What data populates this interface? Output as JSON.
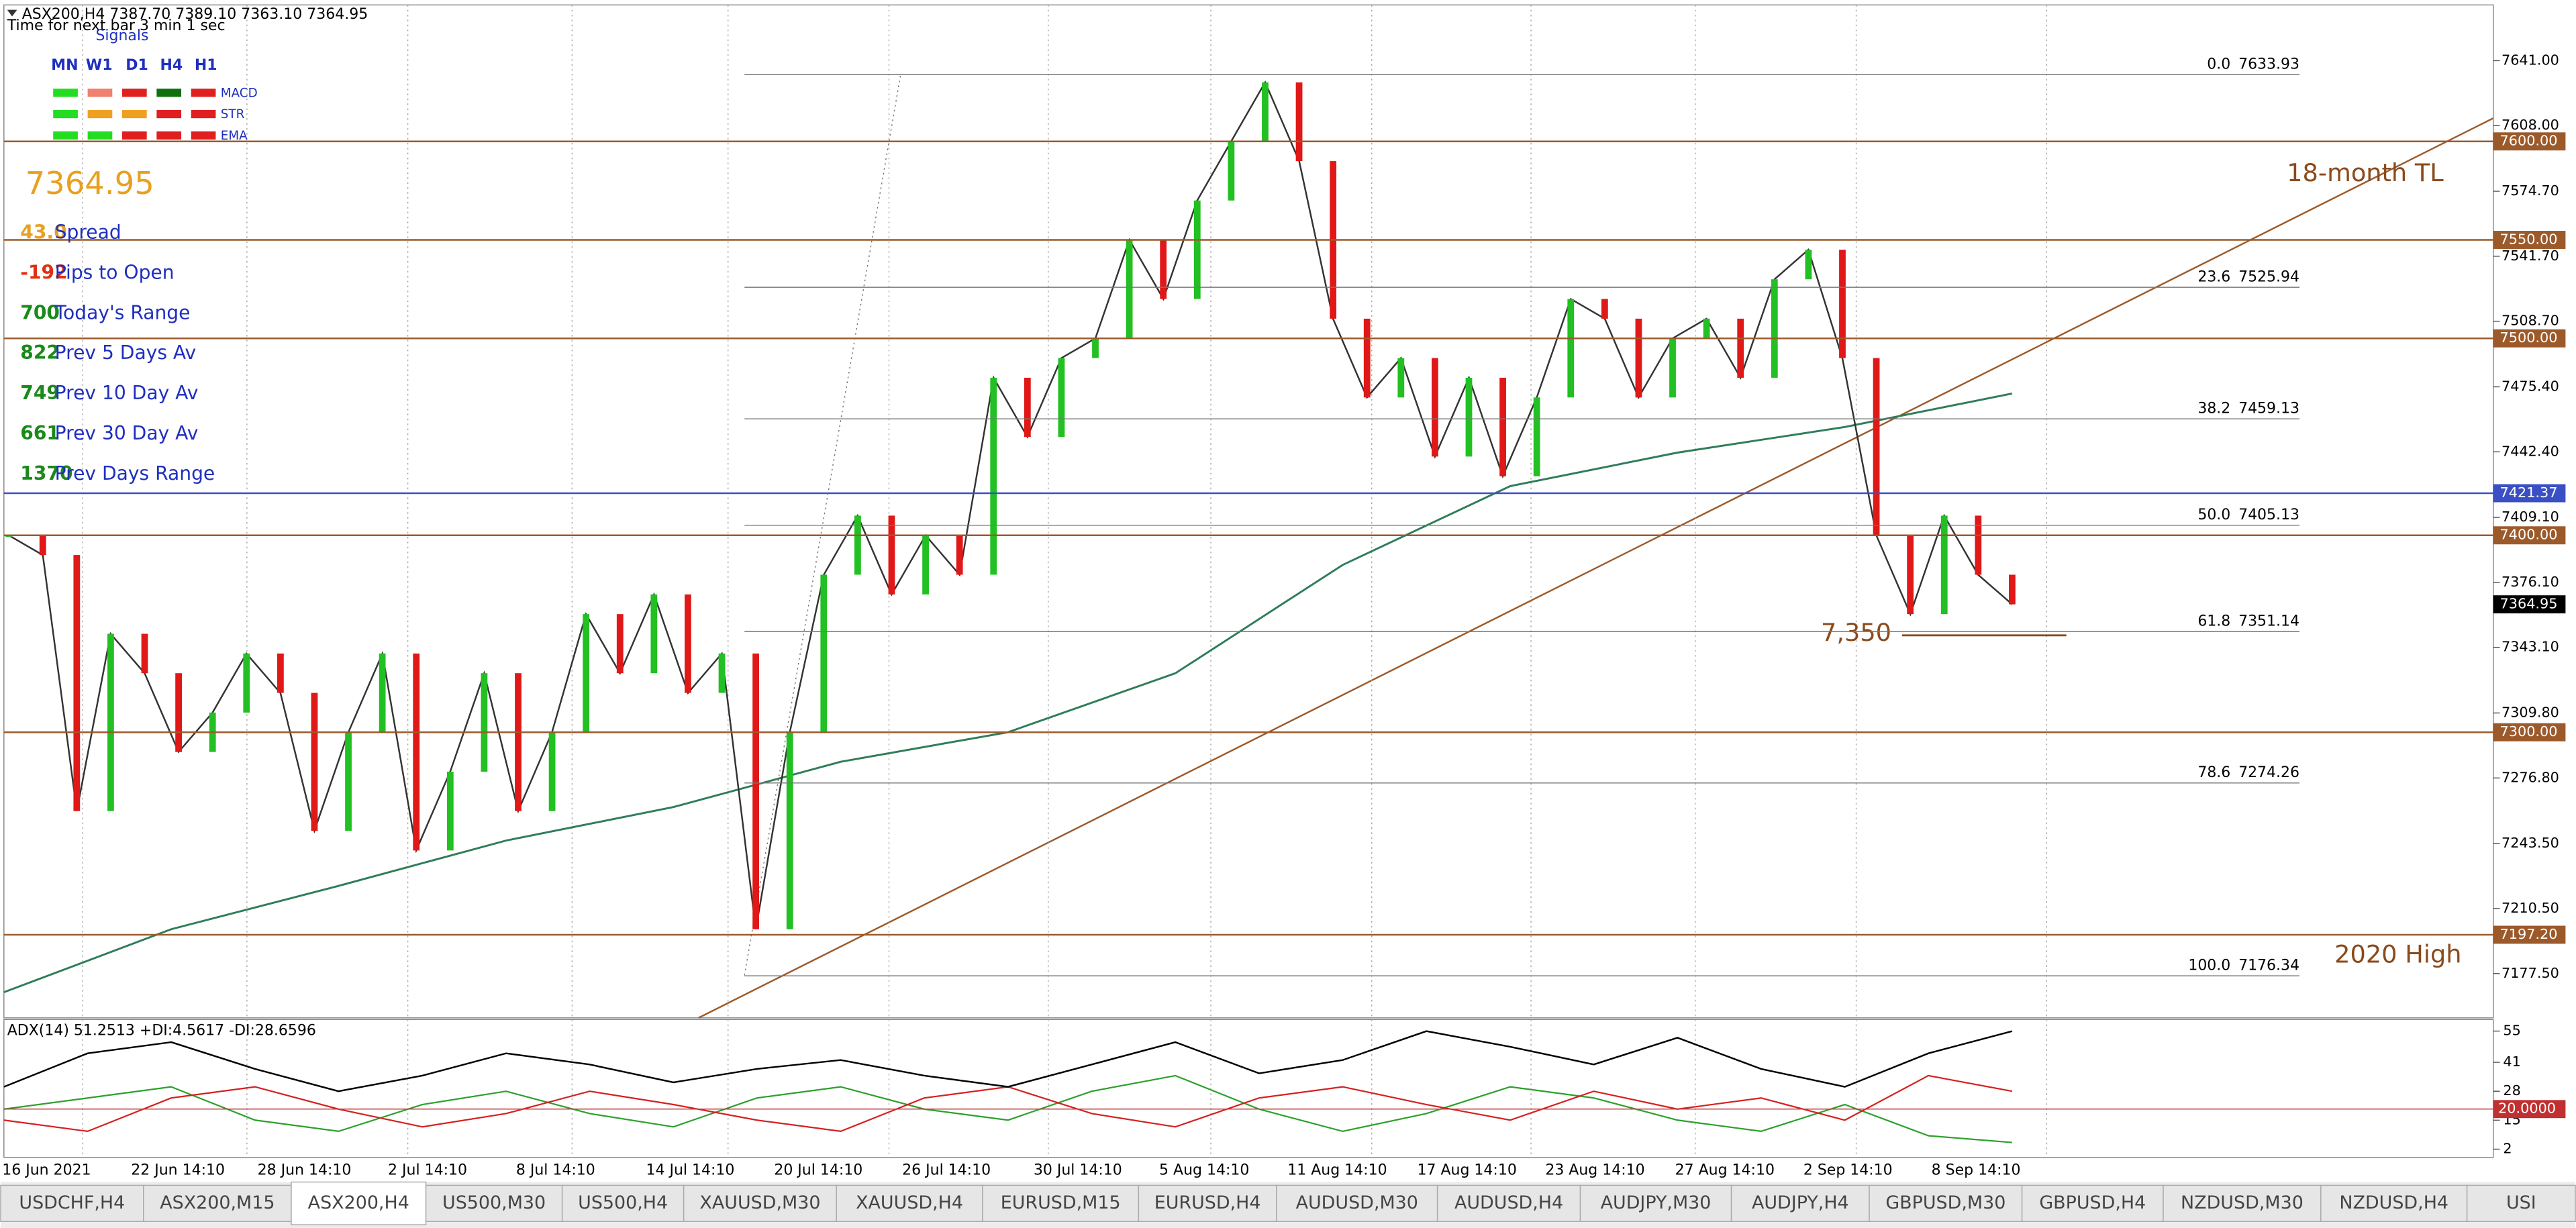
{
  "window": {
    "symbol_info": "ASX200,H4  7387.70 7389.10 7363.10 7364.95",
    "timer": "Time for next bar 3 min 1 sec"
  },
  "signals": {
    "title": "Signals",
    "timeframes": [
      "MN",
      "W1",
      "D1",
      "H4",
      "H1"
    ],
    "indicators": [
      "MACD",
      "STR",
      "EMA"
    ]
  },
  "info_panel": {
    "price": "7364.95",
    "rows": [
      {
        "value": "43.0",
        "label": "Spread"
      },
      {
        "value": "-192",
        "label": "Pips to Open"
      },
      {
        "value": "700",
        "label": "Today's Range"
      },
      {
        "value": "822",
        "label": "Prev 5 Days Av"
      },
      {
        "value": "749",
        "label": "Prev 10 Day Av"
      },
      {
        "value": "661",
        "label": "Prev 30 Day Av"
      },
      {
        "value": "1370",
        "label": "Prev Days Range"
      }
    ]
  },
  "price_chart": {
    "ylim": [
      7155,
      7669.3
    ],
    "yticks": [
      {
        "value": 7641,
        "label": "7641.00"
      },
      {
        "value": 7608,
        "label": "7608.00"
      },
      {
        "value": 7574.7,
        "label": "7574.70"
      },
      {
        "value": 7541.7,
        "label": "7541.70"
      },
      {
        "value": 7508.7,
        "label": "7508.70"
      },
      {
        "value": 7475.4,
        "label": "7475.40"
      },
      {
        "value": 7442.4,
        "label": "7442.40"
      },
      {
        "value": 7409.1,
        "label": "7409.10"
      },
      {
        "value": 7376.1,
        "label": "7376.10"
      },
      {
        "value": 7343.1,
        "label": "7343.10"
      },
      {
        "value": 7309.8,
        "label": "7309.80"
      },
      {
        "value": 7276.8,
        "label": "7276.80"
      },
      {
        "value": 7243.5,
        "label": "7243.50"
      },
      {
        "value": 7210.5,
        "label": "7210.50"
      },
      {
        "value": 7177.5,
        "label": "7177.50"
      }
    ],
    "levels": [
      {
        "value": 7600,
        "label": "7600.00",
        "color": "#9c5a2a"
      },
      {
        "value": 7550,
        "label": "7550.00",
        "color": "#9c5a2a"
      },
      {
        "value": 7500,
        "label": "7500.00",
        "color": "#9c5a2a"
      },
      {
        "value": 7421.37,
        "label": "7421.37",
        "color": "#3a4fc4"
      },
      {
        "value": 7400,
        "label": "7400.00",
        "color": "#9c5a2a"
      },
      {
        "value": 7364.95,
        "label": "7364.95",
        "color": "#000000"
      },
      {
        "value": 7300,
        "label": "7300.00",
        "color": "#9c5a2a"
      },
      {
        "value": 7197.2,
        "label": "7197.20",
        "color": "#9c5a2a"
      }
    ],
    "fib": [
      {
        "ratio": "0.0",
        "value": 7633.93,
        "label": "7633.93"
      },
      {
        "ratio": "23.6",
        "value": 7525.94,
        "label": "7525.94"
      },
      {
        "ratio": "38.2",
        "value": 7459.13,
        "label": "7459.13"
      },
      {
        "ratio": "50.0",
        "value": 7405.13,
        "label": "7405.13"
      },
      {
        "ratio": "61.8",
        "value": 7351.14,
        "label": "7351.14"
      },
      {
        "ratio": "78.6",
        "value": 7274.26,
        "label": "7274.26"
      },
      {
        "ratio": "100.0",
        "value": 7176.34,
        "label": "7176.34"
      }
    ],
    "annotations": {
      "trendline": "18-month TL",
      "high": "2020 High",
      "support": "7,350"
    },
    "close": [
      7400,
      7390,
      7260,
      7350,
      7330,
      7290,
      7310,
      7340,
      7320,
      7250,
      7300,
      7340,
      7240,
      7280,
      7330,
      7260,
      7300,
      7360,
      7330,
      7370,
      7320,
      7340,
      7200,
      7300,
      7380,
      7410,
      7370,
      7400,
      7380,
      7480,
      7450,
      7490,
      7500,
      7550,
      7520,
      7570,
      7600,
      7630,
      7590,
      7510,
      7470,
      7490,
      7440,
      7480,
      7430,
      7470,
      7520,
      7510,
      7470,
      7500,
      7510,
      7480,
      7530,
      7545,
      7490,
      7400,
      7360,
      7410,
      7380,
      7364.95
    ],
    "ma": [
      7168,
      7200,
      7222,
      7245,
      7262,
      7285,
      7300,
      7330,
      7385,
      7425,
      7442,
      7455,
      7472
    ],
    "dates": [
      "16 Jun 2021",
      "22 Jun 14:10",
      "28 Jun 14:10",
      "2 Jul 14:10",
      "8 Jul 14:10",
      "14 Jul 14:10",
      "20 Jul 14:10",
      "26 Jul 14:10",
      "30 Jul 14:10",
      "5 Aug 14:10",
      "11 Aug 14:10",
      "17 Aug 14:10",
      "23 Aug 14:10",
      "27 Aug 14:10",
      "2 Sep 14:10",
      "8 Sep 14:10"
    ]
  },
  "adx_chart": {
    "title": "ADX(14) 51.2513 +DI:4.5617 -DI:28.6596",
    "ylim": [
      -1.7,
      60.2
    ],
    "yticks": [
      55,
      41,
      28,
      15,
      2
    ],
    "level": {
      "value": 20,
      "label": "20.0000"
    },
    "adx": [
      30,
      45,
      50,
      38,
      28,
      35,
      45,
      40,
      32,
      38,
      42,
      35,
      30,
      40,
      50,
      36,
      42,
      55,
      48,
      40,
      52,
      38,
      30,
      45,
      55
    ],
    "plus_di": [
      20,
      25,
      30,
      15,
      10,
      22,
      28,
      18,
      12,
      25,
      30,
      20,
      15,
      28,
      35,
      20,
      10,
      18,
      30,
      25,
      15,
      10,
      22,
      8,
      5
    ],
    "minus_di": [
      15,
      10,
      25,
      30,
      20,
      12,
      18,
      28,
      22,
      15,
      10,
      25,
      30,
      18,
      12,
      25,
      30,
      22,
      15,
      28,
      20,
      25,
      15,
      35,
      28
    ]
  },
  "tabs": [
    "USDCHF,H4",
    "ASX200,M15",
    "ASX200,H4",
    "US500,M30",
    "US500,H4",
    "XAUUSD,M30",
    "XAUUSD,H4",
    "EURUSD,M15",
    "EURUSD,H4",
    "AUDUSD,M30",
    "AUDUSD,H4",
    "AUDJPY,M30",
    "AUDJPY,H4",
    "GBPUSD,M30",
    "GBPUSD,H4",
    "NZDUSD,M30",
    "NZDUSD,H4",
    "USI"
  ]
}
